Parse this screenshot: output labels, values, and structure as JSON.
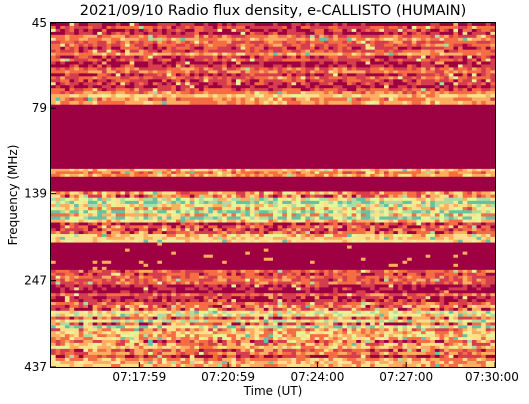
{
  "chart_data": {
    "type": "heatmap",
    "title": "2021/09/10  Radio flux density, e-CALLISTO (HUMAIN)",
    "xlabel": "Time (UT)",
    "ylabel": "Frequency (MHz)",
    "x_ticks": [
      "07:17:59",
      "07:20:59",
      "07:24:00",
      "07:27:00",
      "07:30:00"
    ],
    "y_ticks": [
      "45",
      "79",
      "139",
      "247",
      "437"
    ],
    "xlim": [
      "07:15:00",
      "07:30:00"
    ],
    "ylim": [
      45,
      437
    ],
    "colormap": [
      "#9e0142",
      "#d53e4f",
      "#f46d43",
      "#fdae61",
      "#fee08b",
      "#e6f598",
      "#abdda4",
      "#66c2a5"
    ],
    "bands": [
      {
        "from": 45,
        "to": 72,
        "level": 0.25,
        "noise": 0.3
      },
      {
        "from": 72,
        "to": 77,
        "level": 0.45,
        "noise": 0.3
      },
      {
        "from": 77,
        "to": 118,
        "level": 0.0,
        "noise": 0.0
      },
      {
        "from": 118,
        "to": 124,
        "level": 0.4,
        "noise": 0.3
      },
      {
        "from": 124,
        "to": 137,
        "level": 0.0,
        "noise": 0.0
      },
      {
        "from": 137,
        "to": 165,
        "level": 0.55,
        "noise": 0.5
      },
      {
        "from": 165,
        "to": 185,
        "level": 0.35,
        "noise": 0.4
      },
      {
        "from": 185,
        "to": 192,
        "level": 0.6,
        "noise": 0.2
      },
      {
        "from": 192,
        "to": 230,
        "level": 0.0,
        "noise": 0.02
      },
      {
        "from": 230,
        "to": 290,
        "level": 0.2,
        "noise": 0.3
      },
      {
        "from": 290,
        "to": 380,
        "level": 0.55,
        "noise": 0.5
      },
      {
        "from": 380,
        "to": 437,
        "level": 0.3,
        "noise": 0.35
      }
    ]
  }
}
